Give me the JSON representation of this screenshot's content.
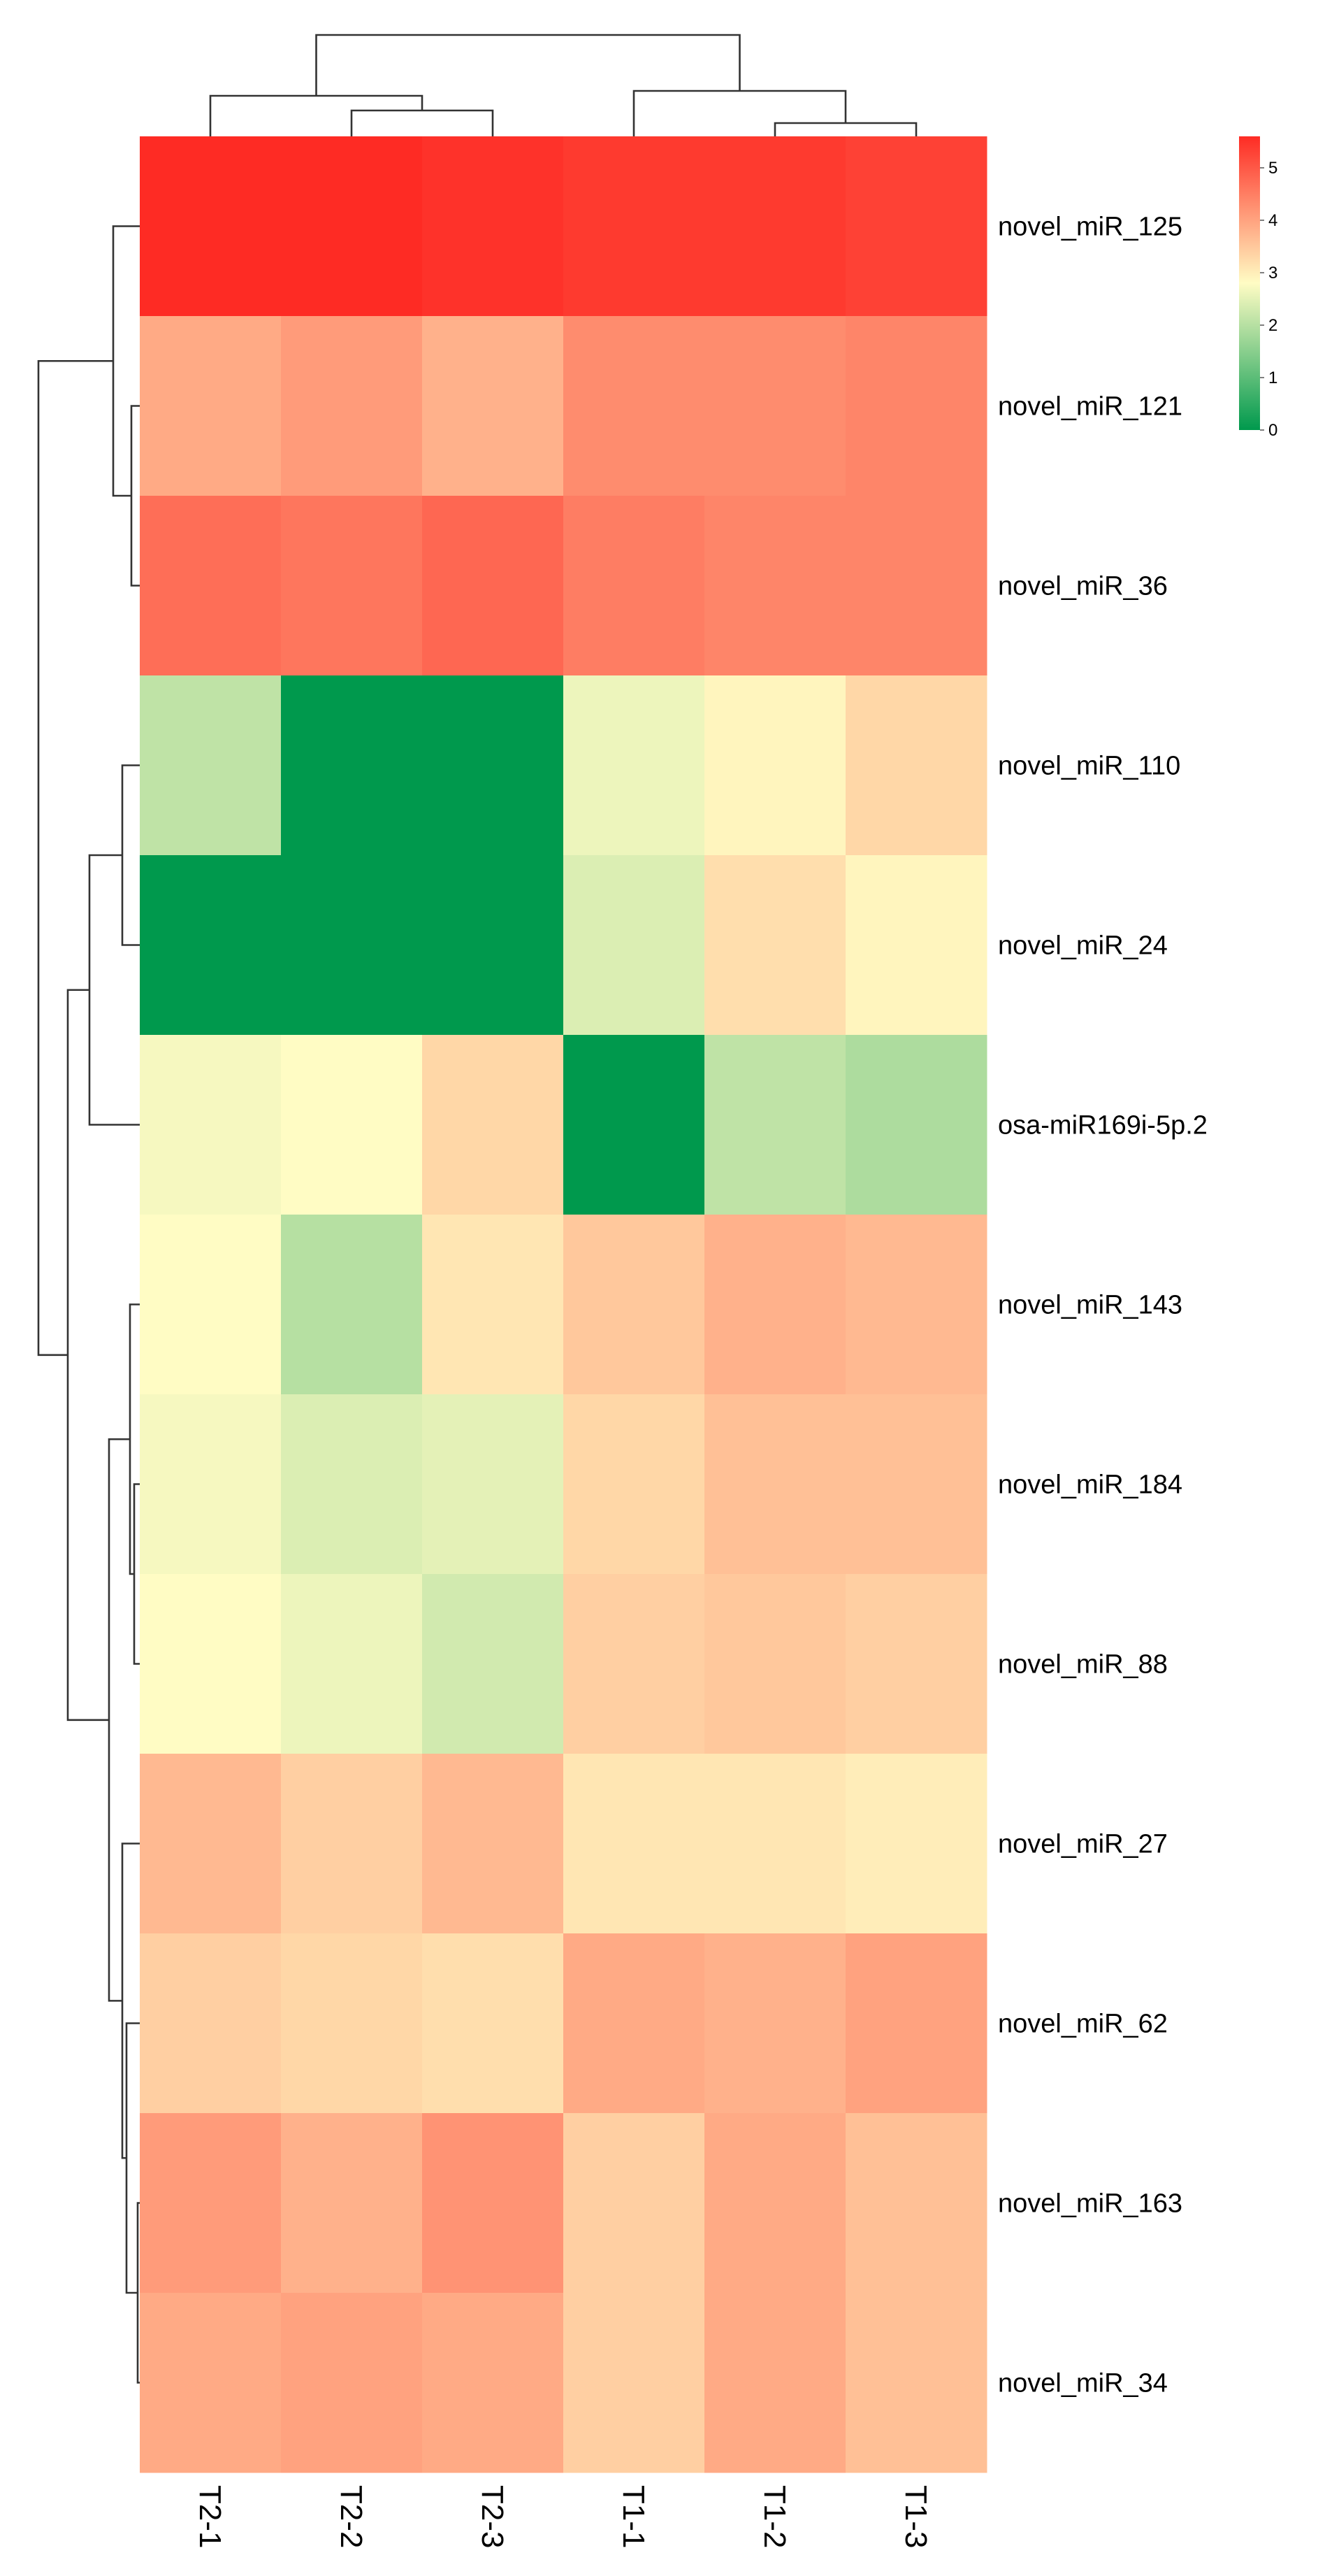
{
  "chart_data": {
    "type": "heatmap",
    "title": "",
    "columns": [
      "T2-1",
      "T2-2",
      "T2-3",
      "T1-1",
      "T1-2",
      "T1-3"
    ],
    "rows": [
      "novel_miR_125",
      "novel_miR_121",
      "novel_miR_36",
      "novel_miR_110",
      "novel_miR_24",
      "osa-miR169i-5p.2",
      "novel_miR_143",
      "novel_miR_184",
      "novel_miR_88",
      "novel_miR_27",
      "novel_miR_62",
      "novel_miR_163",
      "novel_miR_34"
    ],
    "values": [
      [
        5.6,
        5.6,
        5.5,
        5.4,
        5.4,
        5.3
      ],
      [
        3.9,
        4.1,
        3.8,
        4.3,
        4.3,
        4.4
      ],
      [
        4.7,
        4.6,
        4.8,
        4.5,
        4.4,
        4.4
      ],
      [
        2.1,
        0.0,
        0.0,
        2.6,
        2.9,
        3.3
      ],
      [
        0.0,
        0.0,
        0.0,
        2.4,
        3.2,
        2.9
      ],
      [
        2.7,
        2.8,
        3.3,
        0.0,
        2.1,
        1.9
      ],
      [
        2.8,
        2.0,
        3.1,
        3.5,
        3.8,
        3.7
      ],
      [
        2.7,
        2.4,
        2.5,
        3.3,
        3.6,
        3.6
      ],
      [
        2.8,
        2.6,
        2.3,
        3.4,
        3.5,
        3.4
      ],
      [
        3.7,
        3.4,
        3.7,
        3.1,
        3.1,
        3.0
      ],
      [
        3.4,
        3.3,
        3.2,
        3.9,
        3.8,
        4.0
      ],
      [
        4.1,
        3.8,
        4.2,
        3.4,
        3.9,
        3.6
      ],
      [
        3.9,
        4.0,
        3.9,
        3.4,
        3.9,
        3.6
      ]
    ],
    "color_scale": {
      "min": 0,
      "max": 5.6,
      "low_color": "#00994d",
      "mid_color": "#fffcc4",
      "high_color": "#fe2b24"
    },
    "legend": {
      "ticks": [
        0,
        1,
        2,
        3,
        4,
        5
      ],
      "placement": "top-right"
    },
    "row_dendrogram": true,
    "column_dendrogram": true
  }
}
